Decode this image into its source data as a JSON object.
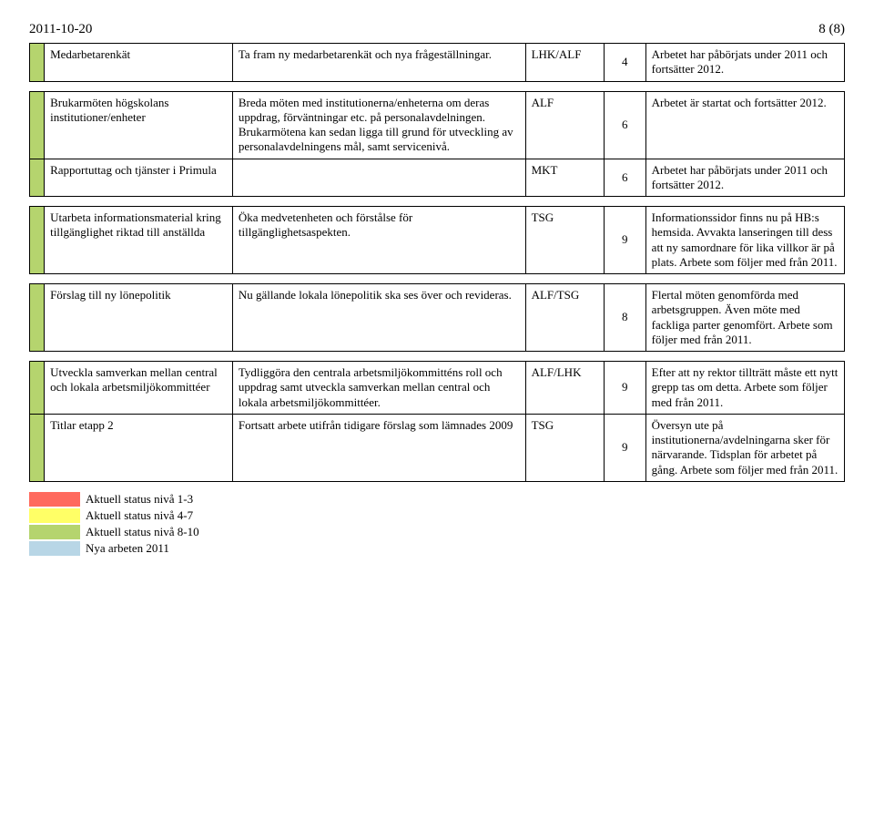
{
  "header": {
    "date": "2011-10-20",
    "page": "8 (8)"
  },
  "colors": {
    "green": "#b5d46e",
    "yellow": "#ffff66",
    "red": "#ff6a5e",
    "blue": "#b8d6e6"
  },
  "tables": [
    {
      "rows": [
        {
          "status_color": "#b5d46e",
          "title": "Medarbetarenkät",
          "desc": "Ta fram ny medarbetarenkät och nya frågeställningar.",
          "code": "LHK/ALF",
          "num": "4",
          "result": "Arbetet har påbörjats under 2011 och fortsätter 2012."
        }
      ]
    },
    {
      "rows": [
        {
          "status_color": "#b5d46e",
          "title": "Brukarmöten högskolans institutioner/enheter",
          "desc": "Breda möten med institutionerna/enheterna om deras uppdrag, förväntningar etc. på personalavdelningen. Brukarmötena kan sedan ligga till grund för utveckling av personalavdelningens mål, samt servicenivå.",
          "code": "ALF",
          "num": "6",
          "result": "Arbetet är startat och fortsätter 2012."
        },
        {
          "status_color": "#b5d46e",
          "title": "Rapportuttag och tjänster i Primula",
          "desc": "",
          "code": "MKT",
          "num": "6",
          "result": "Arbetet har påbörjats under 2011 och fortsätter 2012."
        }
      ]
    },
    {
      "rows": [
        {
          "status_color": "#b5d46e",
          "title": "Utarbeta informationsmaterial kring tillgänglighet riktad till anställda",
          "desc": "Öka medvetenheten och förstålse för tillgänglighetsaspekten.",
          "code": "TSG",
          "num": "9",
          "result": "Informationssidor finns nu på HB:s hemsida. Avvakta lanseringen till dess att ny samordnare för lika villkor är på plats. Arbete som följer med från 2011."
        }
      ]
    },
    {
      "rows": [
        {
          "status_color": "#b5d46e",
          "title": "Förslag till ny lönepolitik",
          "desc": "Nu gällande lokala lönepolitik ska ses över och revideras.",
          "code": "ALF/TSG",
          "num": "8",
          "result": "Flertal möten genomförda med arbetsgruppen. Även möte med fackliga parter genomfört. Arbete som följer med från 2011."
        }
      ]
    },
    {
      "rows": [
        {
          "status_color": "#b5d46e",
          "title": "Utveckla samverkan mellan central och lokala arbetsmiljökommittéer",
          "desc": "Tydliggöra den centrala arbetsmiljökommitténs roll och uppdrag samt utveckla samverkan mellan central och lokala arbetsmiljökommittéer.",
          "code": "ALF/LHK",
          "num": "9",
          "result": "Efter att ny rektor tillträtt måste ett nytt grepp tas om detta. Arbete som följer med från 2011."
        },
        {
          "status_color": "#b5d46e",
          "title": "Titlar etapp 2",
          "desc": "Fortsatt arbete utifrån tidigare förslag som lämnades 2009",
          "code": "TSG",
          "num": "9",
          "result": "Översyn ute på institutionerna/avdelningarna sker för närvarande. Tidsplan för arbetet på gång. Arbete som följer med från 2011."
        }
      ]
    }
  ],
  "legend": [
    {
      "color": "#ff6a5e",
      "label": "Aktuell status nivå 1-3"
    },
    {
      "color": "#ffff66",
      "label": "Aktuell status nivå 4-7"
    },
    {
      "color": "#b5d46e",
      "label": "Aktuell status nivå 8-10"
    },
    {
      "color": "#b8d6e6",
      "label": "Nya arbeten 2011"
    }
  ]
}
